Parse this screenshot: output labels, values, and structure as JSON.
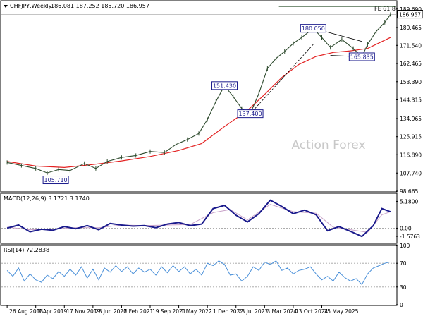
{
  "chart_data": {
    "type": "line",
    "panels": {
      "price": {
        "header": {
          "symbol": "CHFJPY,Weekly",
          "ohlc": "186.081 187.252 185.720 186.957"
        },
        "y_range": [
          98.665,
          193.5
        ],
        "y_ticks": [
          "189.690",
          "180.465",
          "171.540",
          "162.465",
          "153.390",
          "144.315",
          "134.965",
          "125.915",
          "116.890",
          "107.740",
          "98.665"
        ],
        "current_price": "186.957",
        "fe_label": "FE 61.8",
        "fe_level": 191.0,
        "watermark": "Action Forex",
        "close_series": [
          {
            "x": 0,
            "y": 113.0
          },
          {
            "x": 5,
            "y": 111.5
          },
          {
            "x": 10,
            "y": 110.0
          },
          {
            "x": 14,
            "y": 107.8
          },
          {
            "x": 18,
            "y": 109.5
          },
          {
            "x": 22,
            "y": 109.0
          },
          {
            "x": 27,
            "y": 112.5
          },
          {
            "x": 31,
            "y": 110.0
          },
          {
            "x": 35,
            "y": 113.5
          },
          {
            "x": 40,
            "y": 115.5
          },
          {
            "x": 45,
            "y": 116.5
          },
          {
            "x": 50,
            "y": 118.5
          },
          {
            "x": 55,
            "y": 118.0
          },
          {
            "x": 59,
            "y": 122.0
          },
          {
            "x": 63,
            "y": 124.5
          },
          {
            "x": 67,
            "y": 127.5
          },
          {
            "x": 70,
            "y": 134.5
          },
          {
            "x": 73,
            "y": 143.5
          },
          {
            "x": 76,
            "y": 151.4
          },
          {
            "x": 79,
            "y": 146.0
          },
          {
            "x": 82,
            "y": 140.0
          },
          {
            "x": 85,
            "y": 137.4
          },
          {
            "x": 88,
            "y": 147.5
          },
          {
            "x": 91,
            "y": 160.0
          },
          {
            "x": 94,
            "y": 165.0
          },
          {
            "x": 97,
            "y": 168.5
          },
          {
            "x": 100,
            "y": 172.5
          },
          {
            "x": 103,
            "y": 175.5
          },
          {
            "x": 107,
            "y": 180.05
          },
          {
            "x": 110,
            "y": 175.5
          },
          {
            "x": 113,
            "y": 170.5
          },
          {
            "x": 117,
            "y": 174.5
          },
          {
            "x": 121,
            "y": 170.0
          },
          {
            "x": 124,
            "y": 165.8
          },
          {
            "x": 126,
            "y": 172.0
          },
          {
            "x": 129,
            "y": 178.5
          },
          {
            "x": 132,
            "y": 183.0
          },
          {
            "x": 134,
            "y": 187.0
          }
        ],
        "ma_series": [
          {
            "x": 0,
            "y": 113.5
          },
          {
            "x": 10,
            "y": 111.2
          },
          {
            "x": 20,
            "y": 110.5
          },
          {
            "x": 30,
            "y": 112.0
          },
          {
            "x": 40,
            "y": 113.8
          },
          {
            "x": 50,
            "y": 116.0
          },
          {
            "x": 60,
            "y": 119.0
          },
          {
            "x": 68,
            "y": 122.5
          },
          {
            "x": 76,
            "y": 131.0
          },
          {
            "x": 84,
            "y": 139.0
          },
          {
            "x": 90,
            "y": 147.0
          },
          {
            "x": 96,
            "y": 155.5
          },
          {
            "x": 102,
            "y": 162.0
          },
          {
            "x": 108,
            "y": 166.0
          },
          {
            "x": 114,
            "y": 168.0
          },
          {
            "x": 120,
            "y": 168.8
          },
          {
            "x": 126,
            "y": 170.0
          },
          {
            "x": 134,
            "y": 175.5
          }
        ],
        "price_labels": [
          {
            "text": "105.710",
            "x": 17,
            "y": 105.71
          },
          {
            "text": "151.430",
            "x": 76,
            "y": 151.43
          },
          {
            "text": "137.400",
            "x": 85,
            "y": 137.4
          },
          {
            "text": "180.050",
            "x": 107,
            "y": 180.05
          },
          {
            "text": "165.835",
            "x": 124,
            "y": 165.835
          }
        ]
      },
      "macd": {
        "header": "MACD(12,26,9) 3.1721 3.1740",
        "y_range": [
          -2.8,
          6.6
        ],
        "y_ticks": [
          "5.1800",
          "0.00",
          "-1.5763"
        ],
        "series": [
          {
            "x": 0,
            "y": 0.0
          },
          {
            "x": 4,
            "y": 0.6
          },
          {
            "x": 8,
            "y": -0.7
          },
          {
            "x": 12,
            "y": -0.2
          },
          {
            "x": 16,
            "y": -0.4
          },
          {
            "x": 20,
            "y": 0.3
          },
          {
            "x": 24,
            "y": -0.1
          },
          {
            "x": 28,
            "y": 0.5
          },
          {
            "x": 32,
            "y": -0.3
          },
          {
            "x": 36,
            "y": 0.9
          },
          {
            "x": 40,
            "y": 0.6
          },
          {
            "x": 44,
            "y": 0.4
          },
          {
            "x": 48,
            "y": 0.5
          },
          {
            "x": 52,
            "y": 0.1
          },
          {
            "x": 56,
            "y": 0.8
          },
          {
            "x": 60,
            "y": 1.1
          },
          {
            "x": 64,
            "y": 0.5
          },
          {
            "x": 68,
            "y": 0.8
          },
          {
            "x": 72,
            "y": 3.8
          },
          {
            "x": 76,
            "y": 4.4
          },
          {
            "x": 80,
            "y": 2.5
          },
          {
            "x": 84,
            "y": 1.2
          },
          {
            "x": 88,
            "y": 2.8
          },
          {
            "x": 92,
            "y": 5.4
          },
          {
            "x": 96,
            "y": 4.2
          },
          {
            "x": 100,
            "y": 2.8
          },
          {
            "x": 104,
            "y": 3.5
          },
          {
            "x": 108,
            "y": 2.6
          },
          {
            "x": 112,
            "y": -0.5
          },
          {
            "x": 116,
            "y": 0.3
          },
          {
            "x": 120,
            "y": -0.6
          },
          {
            "x": 124,
            "y": -1.6
          },
          {
            "x": 128,
            "y": 0.5
          },
          {
            "x": 131,
            "y": 3.8
          },
          {
            "x": 134,
            "y": 3.17
          }
        ],
        "signal": [
          {
            "x": 0,
            "y": 0.2
          },
          {
            "x": 8,
            "y": -0.3
          },
          {
            "x": 16,
            "y": -0.2
          },
          {
            "x": 24,
            "y": 0.1
          },
          {
            "x": 32,
            "y": 0.1
          },
          {
            "x": 40,
            "y": 0.6
          },
          {
            "x": 48,
            "y": 0.5
          },
          {
            "x": 56,
            "y": 0.6
          },
          {
            "x": 64,
            "y": 0.7
          },
          {
            "x": 72,
            "y": 3.0
          },
          {
            "x": 78,
            "y": 3.6
          },
          {
            "x": 84,
            "y": 1.6
          },
          {
            "x": 92,
            "y": 4.6
          },
          {
            "x": 100,
            "y": 3.2
          },
          {
            "x": 108,
            "y": 2.9
          },
          {
            "x": 114,
            "y": 0.2
          },
          {
            "x": 120,
            "y": -0.3
          },
          {
            "x": 126,
            "y": -0.8
          },
          {
            "x": 131,
            "y": 2.6
          },
          {
            "x": 134,
            "y": 3.17
          }
        ]
      },
      "rsi": {
        "header": "RSI(14) 72.2838",
        "y_range": [
          0,
          100
        ],
        "y_ticks": [
          "100",
          "70",
          "30",
          "0"
        ],
        "series": [
          {
            "x": 0,
            "y": 58
          },
          {
            "x": 2,
            "y": 48
          },
          {
            "x": 4,
            "y": 62
          },
          {
            "x": 6,
            "y": 40
          },
          {
            "x": 8,
            "y": 52
          },
          {
            "x": 10,
            "y": 42
          },
          {
            "x": 12,
            "y": 38
          },
          {
            "x": 14,
            "y": 50
          },
          {
            "x": 16,
            "y": 44
          },
          {
            "x": 18,
            "y": 56
          },
          {
            "x": 20,
            "y": 48
          },
          {
            "x": 22,
            "y": 60
          },
          {
            "x": 24,
            "y": 50
          },
          {
            "x": 26,
            "y": 64
          },
          {
            "x": 28,
            "y": 45
          },
          {
            "x": 30,
            "y": 60
          },
          {
            "x": 32,
            "y": 42
          },
          {
            "x": 34,
            "y": 62
          },
          {
            "x": 36,
            "y": 55
          },
          {
            "x": 38,
            "y": 66
          },
          {
            "x": 40,
            "y": 56
          },
          {
            "x": 42,
            "y": 64
          },
          {
            "x": 44,
            "y": 52
          },
          {
            "x": 46,
            "y": 62
          },
          {
            "x": 48,
            "y": 55
          },
          {
            "x": 50,
            "y": 60
          },
          {
            "x": 52,
            "y": 50
          },
          {
            "x": 54,
            "y": 64
          },
          {
            "x": 56,
            "y": 54
          },
          {
            "x": 58,
            "y": 66
          },
          {
            "x": 60,
            "y": 56
          },
          {
            "x": 62,
            "y": 64
          },
          {
            "x": 64,
            "y": 52
          },
          {
            "x": 66,
            "y": 60
          },
          {
            "x": 68,
            "y": 50
          },
          {
            "x": 70,
            "y": 70
          },
          {
            "x": 72,
            "y": 66
          },
          {
            "x": 74,
            "y": 74
          },
          {
            "x": 76,
            "y": 68
          },
          {
            "x": 78,
            "y": 50
          },
          {
            "x": 80,
            "y": 52
          },
          {
            "x": 82,
            "y": 40
          },
          {
            "x": 84,
            "y": 48
          },
          {
            "x": 86,
            "y": 64
          },
          {
            "x": 88,
            "y": 58
          },
          {
            "x": 90,
            "y": 72
          },
          {
            "x": 92,
            "y": 68
          },
          {
            "x": 94,
            "y": 74
          },
          {
            "x": 96,
            "y": 58
          },
          {
            "x": 98,
            "y": 62
          },
          {
            "x": 100,
            "y": 52
          },
          {
            "x": 102,
            "y": 58
          },
          {
            "x": 104,
            "y": 60
          },
          {
            "x": 106,
            "y": 64
          },
          {
            "x": 108,
            "y": 52
          },
          {
            "x": 110,
            "y": 42
          },
          {
            "x": 112,
            "y": 48
          },
          {
            "x": 114,
            "y": 40
          },
          {
            "x": 116,
            "y": 55
          },
          {
            "x": 118,
            "y": 46
          },
          {
            "x": 120,
            "y": 40
          },
          {
            "x": 122,
            "y": 44
          },
          {
            "x": 124,
            "y": 34
          },
          {
            "x": 126,
            "y": 52
          },
          {
            "x": 128,
            "y": 62
          },
          {
            "x": 130,
            "y": 66
          },
          {
            "x": 132,
            "y": 70
          },
          {
            "x": 134,
            "y": 72.28
          }
        ]
      }
    },
    "x_ticks": [
      {
        "label": "26 Aug 2018",
        "x": 0
      },
      {
        "label": "7 Apr 2019",
        "x": 10
      },
      {
        "label": "17 Nov 2019",
        "x": 20
      },
      {
        "label": "28 Jun 2020",
        "x": 30
      },
      {
        "label": "7 Feb 2021",
        "x": 40
      },
      {
        "label": "19 Sep 2021",
        "x": 50
      },
      {
        "label": "1 May 2022",
        "x": 60
      },
      {
        "label": "11 Dec 2022",
        "x": 70
      },
      {
        "label": "23 Jul 2023",
        "x": 80
      },
      {
        "label": "3 Mar 2024",
        "x": 90
      },
      {
        "label": "13 Oct 2024",
        "x": 100
      },
      {
        "label": "25 May 2025",
        "x": 110
      }
    ],
    "x_range": [
      -2,
      136
    ]
  },
  "colors": {
    "price_line": "#2d4a2d",
    "ma": "#e32222",
    "macd_line": "#1a1a8c",
    "macd_signal": "#c8a2c8",
    "rsi_line": "#4a90d9",
    "label_border": "#1a1a8c",
    "label_text": "#1a1a8c",
    "grid": "#a0a0a0",
    "watermark": "#c8c8c8"
  }
}
